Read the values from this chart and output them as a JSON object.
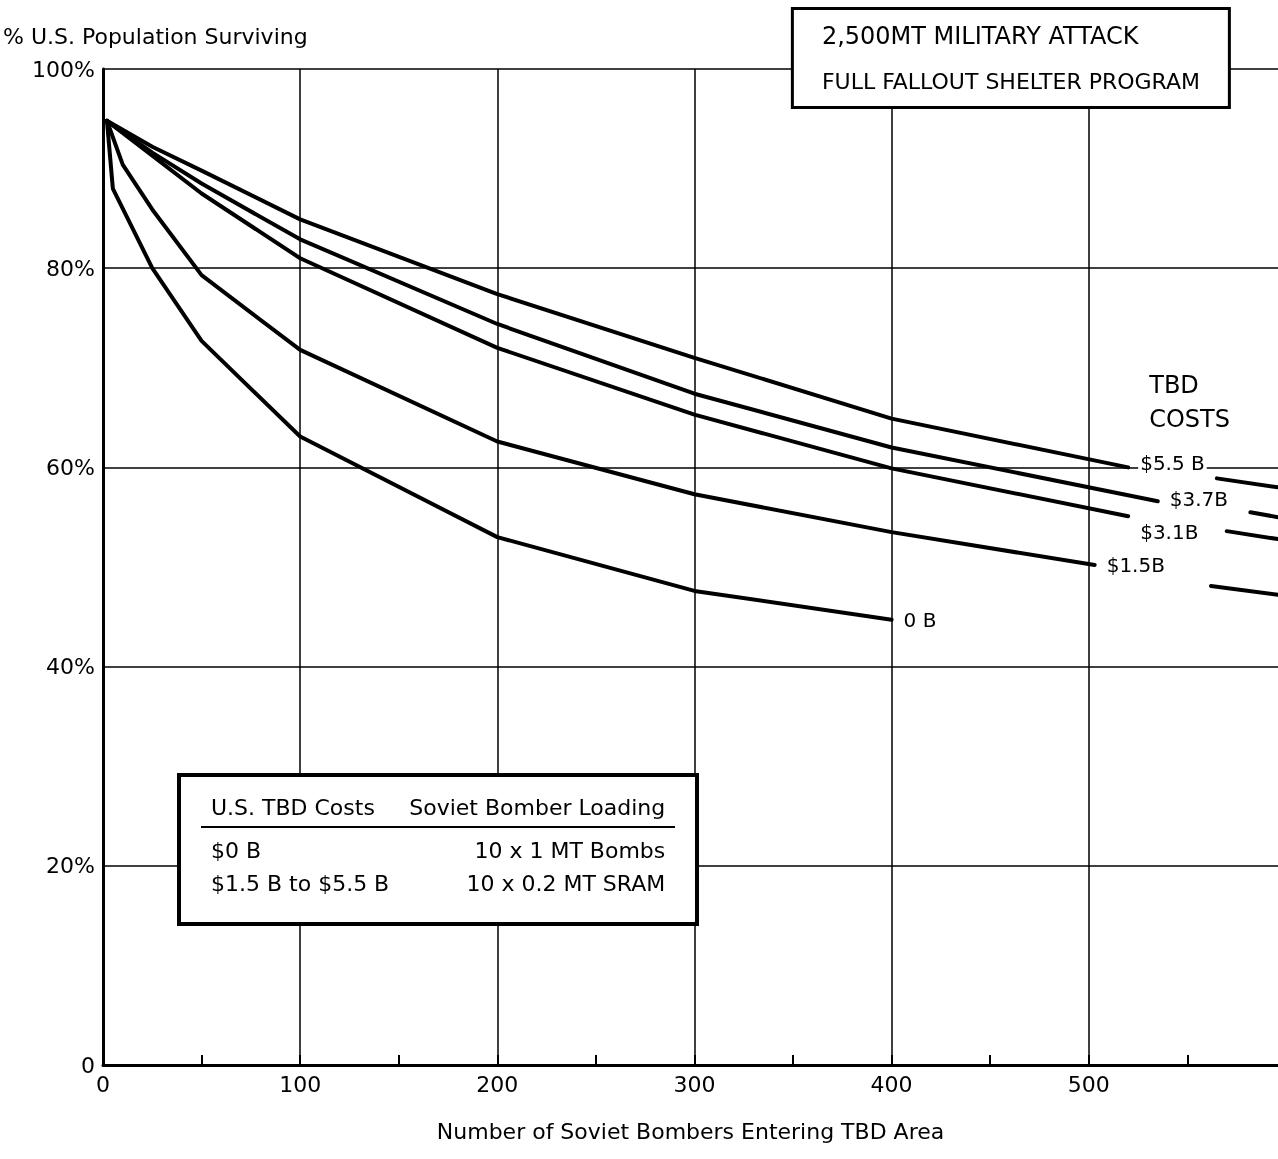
{
  "chart_data": {
    "type": "line",
    "title": "2,500MT MILITARY ATTACK",
    "subtitle": "FULL FALLOUT SHELTER PROGRAM",
    "xlabel": "Number of Soviet Bombers Entering TBD Area",
    "ylabel": "% U.S. Population Surviving",
    "legend_title": "TBD COSTS",
    "xlim": [
      0,
      596
    ],
    "ylim": [
      0,
      100
    ],
    "xticks": [
      0,
      {
        "value": 50,
        "label": null
      },
      100,
      {
        "value": 150,
        "label": null
      },
      200,
      {
        "value": 250,
        "label": null
      },
      300,
      {
        "value": 350,
        "label": null
      },
      400,
      {
        "value": 450,
        "label": null
      },
      500,
      {
        "value": 550,
        "label": null
      }
    ],
    "yticks": [
      0,
      {
        "value": 20,
        "label": "20%"
      },
      {
        "value": 40,
        "label": "40%"
      },
      {
        "value": 60,
        "label": "60%"
      },
      {
        "value": 80,
        "label": "80%"
      },
      {
        "value": 100,
        "label": "100%"
      }
    ],
    "grid": true,
    "legend": false,
    "marker": "none",
    "line_style": "solid",
    "series": [
      {
        "name": "$5.5 B",
        "color": "#000000",
        "x": [
          2,
          25,
          50,
          100,
          200,
          300,
          400,
          520,
          543,
          565,
          596
        ],
        "values": [
          94.8,
          92.2,
          89.8,
          84.9,
          77.4,
          71,
          64.9,
          60,
          null,
          58.9,
          58
        ]
      },
      {
        "name": "$3.7B",
        "color": "#000000",
        "x": [
          2,
          25,
          50,
          100,
          200,
          300,
          400,
          535,
          560,
          582,
          596
        ],
        "values": [
          94.8,
          91.6,
          88.5,
          82.9,
          74.4,
          67.4,
          62,
          56.6,
          null,
          55.5,
          55
        ]
      },
      {
        "name": "$3.1B",
        "color": "#000000",
        "x": [
          2,
          25,
          50,
          100,
          200,
          300,
          400,
          520,
          545,
          570,
          596
        ],
        "values": [
          94.8,
          91.3,
          87.5,
          81,
          72,
          65.3,
          59.9,
          55.1,
          null,
          53.6,
          52.8
        ]
      },
      {
        "name": "$1.5B",
        "color": "#000000",
        "x": [
          2,
          10,
          25,
          50,
          100,
          200,
          300,
          400,
          503,
          530,
          562,
          596
        ],
        "values": [
          94.8,
          90.4,
          85.9,
          79.3,
          71.8,
          62.6,
          57.3,
          53.5,
          50.2,
          null,
          48.1,
          47.2
        ]
      },
      {
        "name": "0 B",
        "color": "#000000",
        "x": [
          2,
          5,
          25,
          50,
          100,
          200,
          300,
          400
        ],
        "values": [
          94.8,
          88,
          80,
          72.7,
          63.1,
          53,
          47.6,
          44.7
        ]
      }
    ],
    "annotations": [
      "U.S. TBD Costs",
      "Soviet Bomber Loading",
      "$0  B",
      "10 x 1  MT Bombs",
      "$1.5 B to $5.5 B",
      "10 x 0.2 MT SRAM"
    ]
  }
}
